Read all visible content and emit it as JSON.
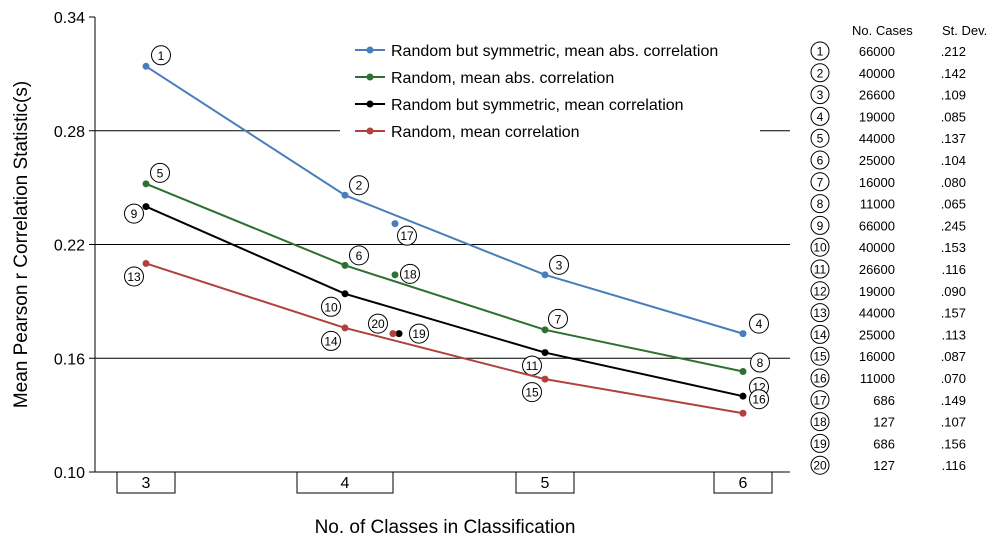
{
  "chart_data": {
    "type": "line",
    "xlabel": "No. of Classes in Classification",
    "ylabel": "Mean Pearson r Correlation Statistic(s)",
    "ylim": [
      0.1,
      0.34
    ],
    "yticks": [
      "0.10",
      "0.16",
      "0.22",
      "0.28",
      "0.34"
    ],
    "categories": [
      "3",
      "4",
      "5",
      "6"
    ],
    "gridlines": "horizontal",
    "legend_position": "top-center",
    "series": [
      {
        "name": "Random but symmetric, mean abs. correlation",
        "color": "#4a7ebb",
        "x": [
          3,
          4,
          5,
          6
        ],
        "values": [
          0.314,
          0.246,
          0.204,
          0.173
        ],
        "labels": [
          "1",
          "2",
          "3",
          "4"
        ]
      },
      {
        "name": "Random, mean abs. correlation",
        "color": "#2e7031",
        "x": [
          3,
          4,
          5,
          6
        ],
        "values": [
          0.252,
          0.209,
          0.175,
          0.153
        ],
        "labels": [
          "5",
          "6",
          "7",
          "8"
        ]
      },
      {
        "name": "Random but symmetric, mean correlation",
        "color": "#000000",
        "x": [
          3,
          4,
          5,
          6
        ],
        "values": [
          0.24,
          0.194,
          0.163,
          0.14
        ],
        "labels": [
          "9",
          "10",
          "11",
          "12"
        ]
      },
      {
        "name": "Random, mean correlation",
        "color": "#b0413e",
        "x": [
          3,
          4,
          5,
          6
        ],
        "values": [
          0.21,
          0.176,
          0.149,
          0.131
        ],
        "labels": [
          "13",
          "14",
          "15",
          "16"
        ]
      }
    ],
    "extra_points": [
      {
        "x": 4.25,
        "value": 0.231,
        "color": "#4a7ebb",
        "label": "17"
      },
      {
        "x": 4.25,
        "value": 0.204,
        "color": "#2e7031",
        "label": "18"
      },
      {
        "x": 4.27,
        "value": 0.173,
        "color": "#000000",
        "label": "19"
      },
      {
        "x": 4.24,
        "value": 0.173,
        "color": "#b0413e",
        "label": "20"
      }
    ],
    "table": {
      "headers": [
        "No. Cases",
        "St. Dev."
      ],
      "rows": [
        {
          "id": "1",
          "cases": "66000",
          "sd": ".212"
        },
        {
          "id": "2",
          "cases": "40000",
          "sd": ".142"
        },
        {
          "id": "3",
          "cases": "26600",
          "sd": ".109"
        },
        {
          "id": "4",
          "cases": "19000",
          "sd": ".085"
        },
        {
          "id": "5",
          "cases": "44000",
          "sd": ".137"
        },
        {
          "id": "6",
          "cases": "25000",
          "sd": ".104"
        },
        {
          "id": "7",
          "cases": "16000",
          "sd": ".080"
        },
        {
          "id": "8",
          "cases": "11000",
          "sd": ".065"
        },
        {
          "id": "9",
          "cases": "66000",
          "sd": ".245"
        },
        {
          "id": "10",
          "cases": "40000",
          "sd": ".153"
        },
        {
          "id": "11",
          "cases": "26600",
          "sd": ".116"
        },
        {
          "id": "12",
          "cases": "19000",
          "sd": ".090"
        },
        {
          "id": "13",
          "cases": "44000",
          "sd": ".157"
        },
        {
          "id": "14",
          "cases": "25000",
          "sd": ".113"
        },
        {
          "id": "15",
          "cases": "16000",
          "sd": ".087"
        },
        {
          "id": "16",
          "cases": "11000",
          "sd": ".070"
        },
        {
          "id": "17",
          "cases": "686",
          "sd": ".149"
        },
        {
          "id": "18",
          "cases": "127",
          "sd": ".107"
        },
        {
          "id": "19",
          "cases": "686",
          "sd": ".156"
        },
        {
          "id": "20",
          "cases": "127",
          "sd": ".116"
        }
      ]
    }
  }
}
